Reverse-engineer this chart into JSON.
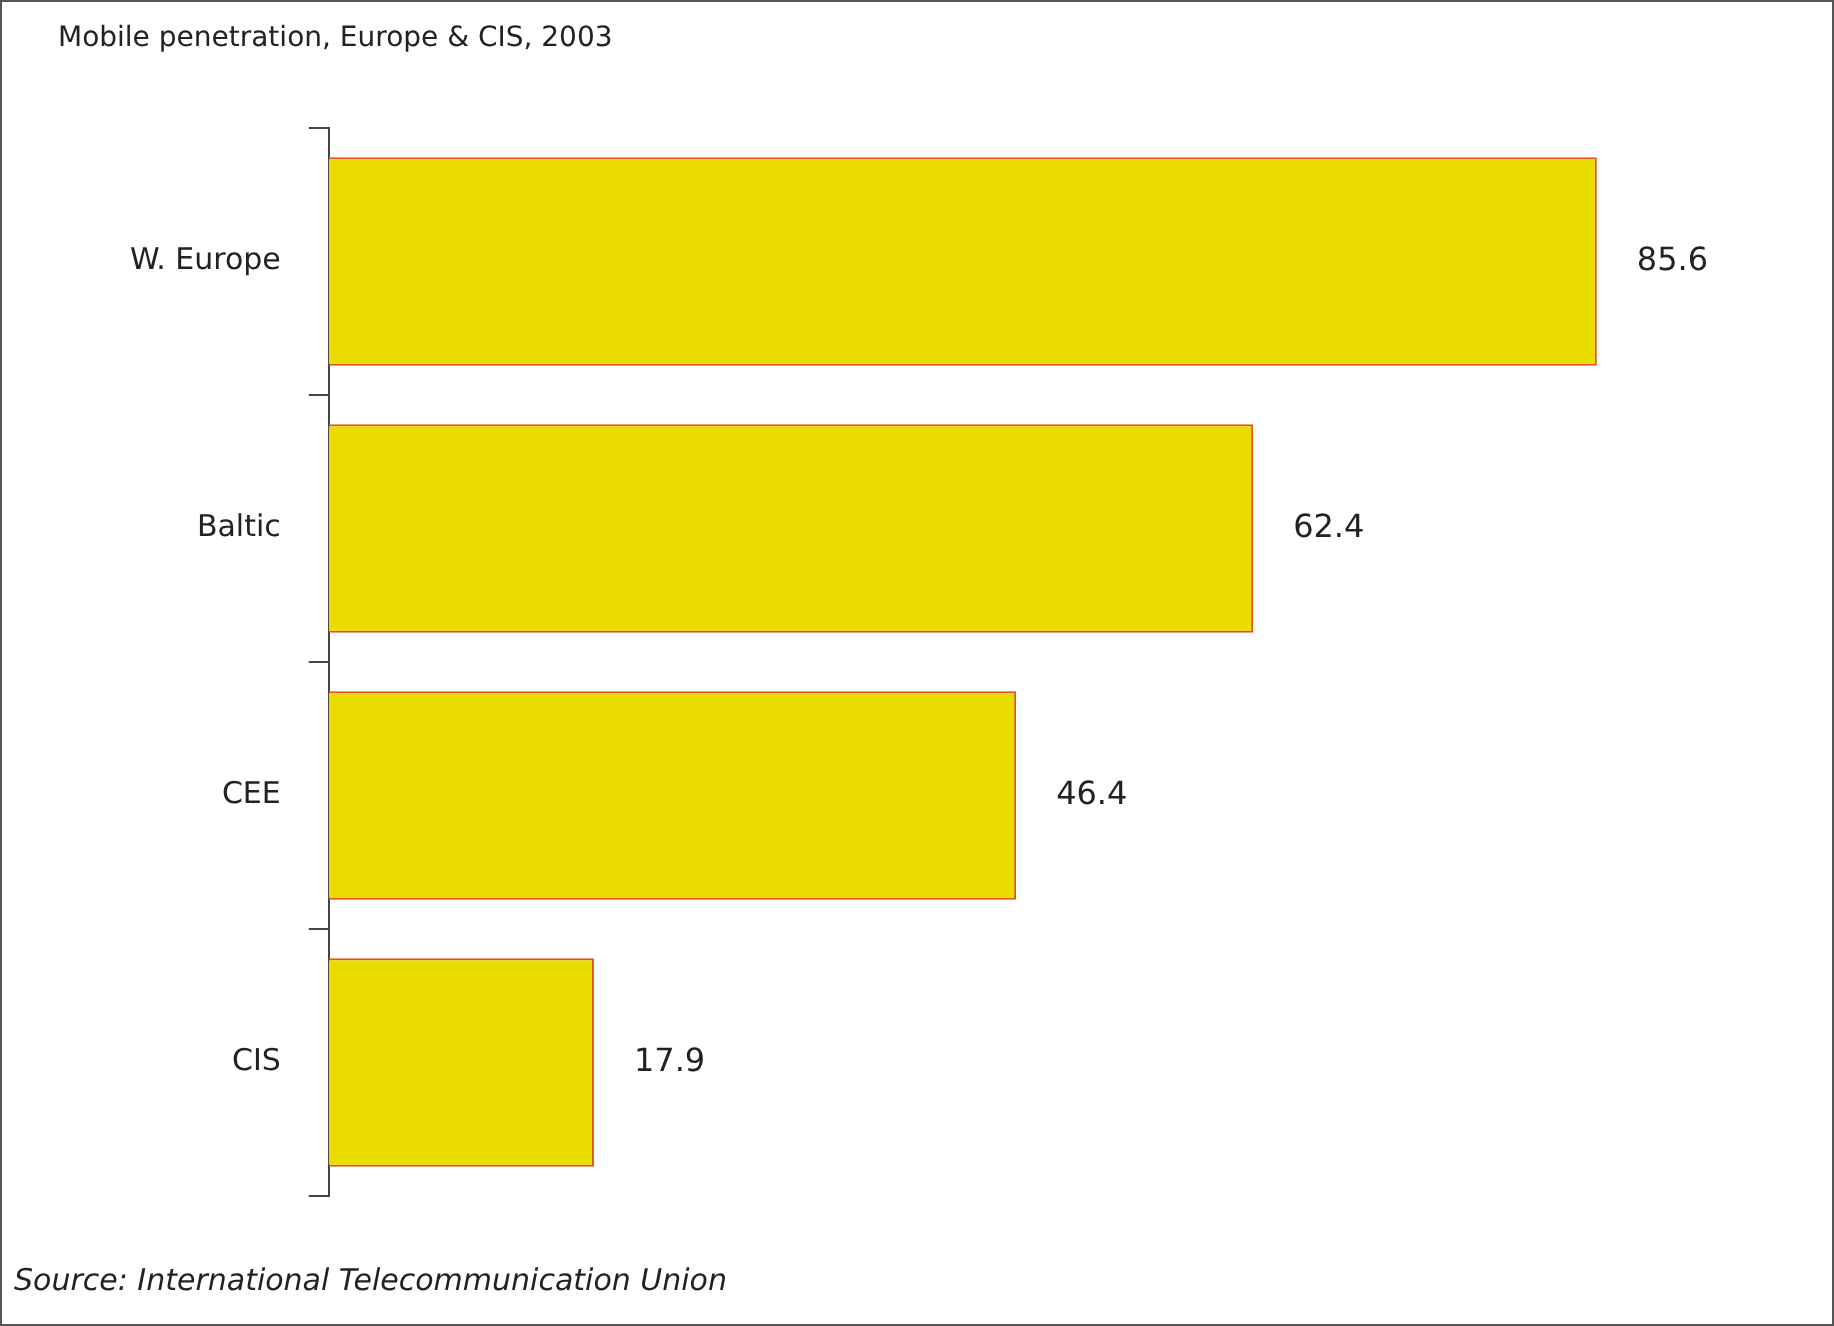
{
  "chart_data": {
    "type": "bar",
    "orientation": "horizontal",
    "title": "Mobile penetration, Europe & CIS, 2003",
    "categories": [
      "W. Europe",
      "Baltic",
      "CEE",
      "CIS"
    ],
    "values": [
      85.6,
      62.4,
      46.4,
      17.9
    ],
    "color": "#ebdc00",
    "data_labels": true,
    "grid": false,
    "legend": false,
    "tick_labels": "y",
    "annotations": [
      "Source: International Telecommunication Union"
    ]
  }
}
